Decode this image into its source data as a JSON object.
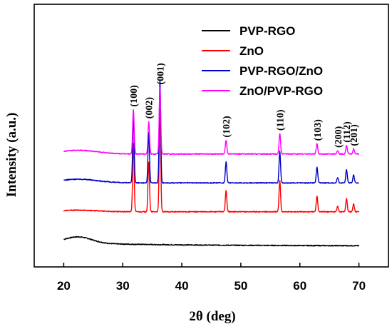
{
  "chart_data": {
    "type": "line",
    "xlabel": "2θ (deg)",
    "ylabel": "Intensity (a.u.)",
    "xlim": [
      15,
      75
    ],
    "ylim": [
      0,
      100
    ],
    "x_ticks": [
      20,
      30,
      40,
      50,
      60,
      70
    ],
    "y_ticks_shown": false,
    "legend_position": "top-right",
    "series": [
      {
        "name": "PVP-RGO",
        "color": "#000000",
        "offset": 8,
        "kind": "rgo"
      },
      {
        "name": "ZnO",
        "color": "#ff0000",
        "offset": 21,
        "kind": "zno",
        "scale": 1.0
      },
      {
        "name": "PVP-RGO/ZnO",
        "color": "#0000cc",
        "offset": 32,
        "kind": "composite",
        "scale": 1.0
      },
      {
        "name": "ZnO/PVP-RGO",
        "color": "#ff00ff",
        "offset": 43,
        "kind": "composite",
        "scale": 0.65
      }
    ],
    "peaks": [
      {
        "x": 31.8,
        "label": "(100)",
        "height": 26
      },
      {
        "x": 34.4,
        "label": "(002)",
        "height": 19
      },
      {
        "x": 36.3,
        "label": "(001)",
        "height": 39
      },
      {
        "x": 47.5,
        "label": "(102)",
        "height": 8
      },
      {
        "x": 56.6,
        "label": "(110)",
        "height": 12
      },
      {
        "x": 62.9,
        "label": "(103)",
        "height": 6
      },
      {
        "x": 66.4,
        "label": "(200)",
        "height": 2
      },
      {
        "x": 67.9,
        "label": "(112)",
        "height": 5
      },
      {
        "x": 69.1,
        "label": "(201)",
        "height": 3
      }
    ]
  }
}
